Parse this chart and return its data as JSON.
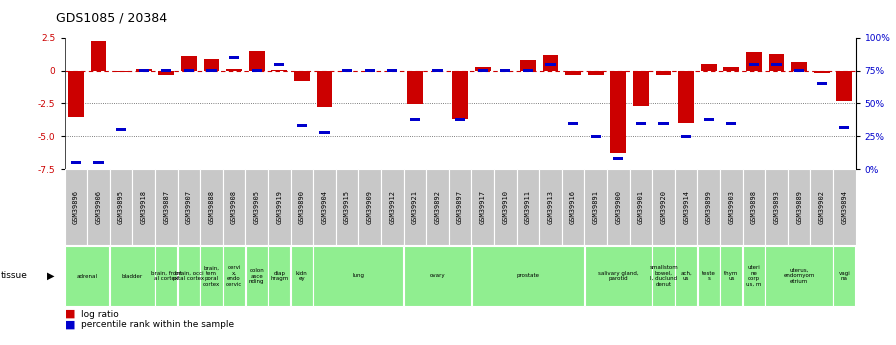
{
  "title": "GDS1085 / 20384",
  "samples": [
    "GSM39896",
    "GSM39906",
    "GSM39895",
    "GSM39918",
    "GSM39887",
    "GSM39907",
    "GSM39888",
    "GSM39908",
    "GSM39905",
    "GSM39919",
    "GSM39890",
    "GSM39904",
    "GSM39915",
    "GSM39909",
    "GSM39912",
    "GSM39921",
    "GSM39892",
    "GSM39897",
    "GSM39917",
    "GSM39910",
    "GSM39911",
    "GSM39913",
    "GSM39916",
    "GSM39891",
    "GSM39900",
    "GSM39901",
    "GSM39920",
    "GSM39914",
    "GSM39899",
    "GSM39903",
    "GSM39898",
    "GSM39893",
    "GSM39889",
    "GSM39902",
    "GSM39894"
  ],
  "log_ratio": [
    -3.5,
    2.3,
    -0.1,
    0.15,
    -0.3,
    1.1,
    0.9,
    0.15,
    1.5,
    0.05,
    -0.8,
    -2.8,
    -0.05,
    -0.05,
    -0.05,
    -2.55,
    -0.05,
    -3.7,
    0.3,
    -0.05,
    0.8,
    1.2,
    -0.3,
    -0.3,
    -6.3,
    -2.7,
    -0.35,
    -4.0,
    0.5,
    0.3,
    1.4,
    1.3,
    0.7,
    -0.15,
    -2.3
  ],
  "percentile": [
    5,
    5,
    30,
    75,
    75,
    75,
    75,
    85,
    75,
    80,
    33,
    28,
    75,
    75,
    75,
    38,
    75,
    38,
    75,
    75,
    75,
    80,
    35,
    25,
    8,
    35,
    35,
    25,
    38,
    35,
    80,
    80,
    75,
    65,
    32
  ],
  "tissue_groups": [
    {
      "label": "adrenal",
      "start": 0,
      "end": 1
    },
    {
      "label": "bladder",
      "start": 2,
      "end": 3
    },
    {
      "label": "brain, front\nal cortex",
      "start": 4,
      "end": 4
    },
    {
      "label": "brain, occi\npital cortex",
      "start": 5,
      "end": 5
    },
    {
      "label": "brain,\ntem\nporal\ncortex",
      "start": 6,
      "end": 6
    },
    {
      "label": "cervi\nx,\nendo\ncervic",
      "start": 7,
      "end": 7
    },
    {
      "label": "colon\nasce\nnding",
      "start": 8,
      "end": 8
    },
    {
      "label": "diap\nhragm",
      "start": 9,
      "end": 9
    },
    {
      "label": "kidn\ney",
      "start": 10,
      "end": 10
    },
    {
      "label": "lung",
      "start": 11,
      "end": 14
    },
    {
      "label": "ovary",
      "start": 15,
      "end": 17
    },
    {
      "label": "prostate",
      "start": 18,
      "end": 22
    },
    {
      "label": "salivary gland,\nparotid",
      "start": 23,
      "end": 25
    },
    {
      "label": "smallstom\nbowel,\nI, duclund\ndenut",
      "start": 26,
      "end": 26
    },
    {
      "label": "ach,\nus",
      "start": 27,
      "end": 27
    },
    {
      "label": "teste\ns",
      "start": 28,
      "end": 28
    },
    {
      "label": "thym\nus",
      "start": 29,
      "end": 29
    },
    {
      "label": "uteri\nne\ncorp\nus, m",
      "start": 30,
      "end": 30
    },
    {
      "label": "uterus,\nendomyom\netrium",
      "start": 31,
      "end": 33
    },
    {
      "label": "vagi\nna",
      "start": 34,
      "end": 34
    }
  ],
  "ylim_left": [
    -7.5,
    2.5
  ],
  "ylim_right": [
    0,
    100
  ],
  "yticks_left": [
    2.5,
    0,
    -2.5,
    -5.0,
    -7.5
  ],
  "yticks_right": [
    100,
    75,
    50,
    25,
    0
  ],
  "bar_color": "#CC0000",
  "square_color": "#0000CC",
  "bg_color": "#ffffff",
  "dashed_line_color": "#CC0000",
  "dotted_line_color": "#555555",
  "title_fontsize": 9,
  "tick_fontsize": 6.5,
  "green_color": "#90EE90",
  "grey_color": "#C8C8C8"
}
